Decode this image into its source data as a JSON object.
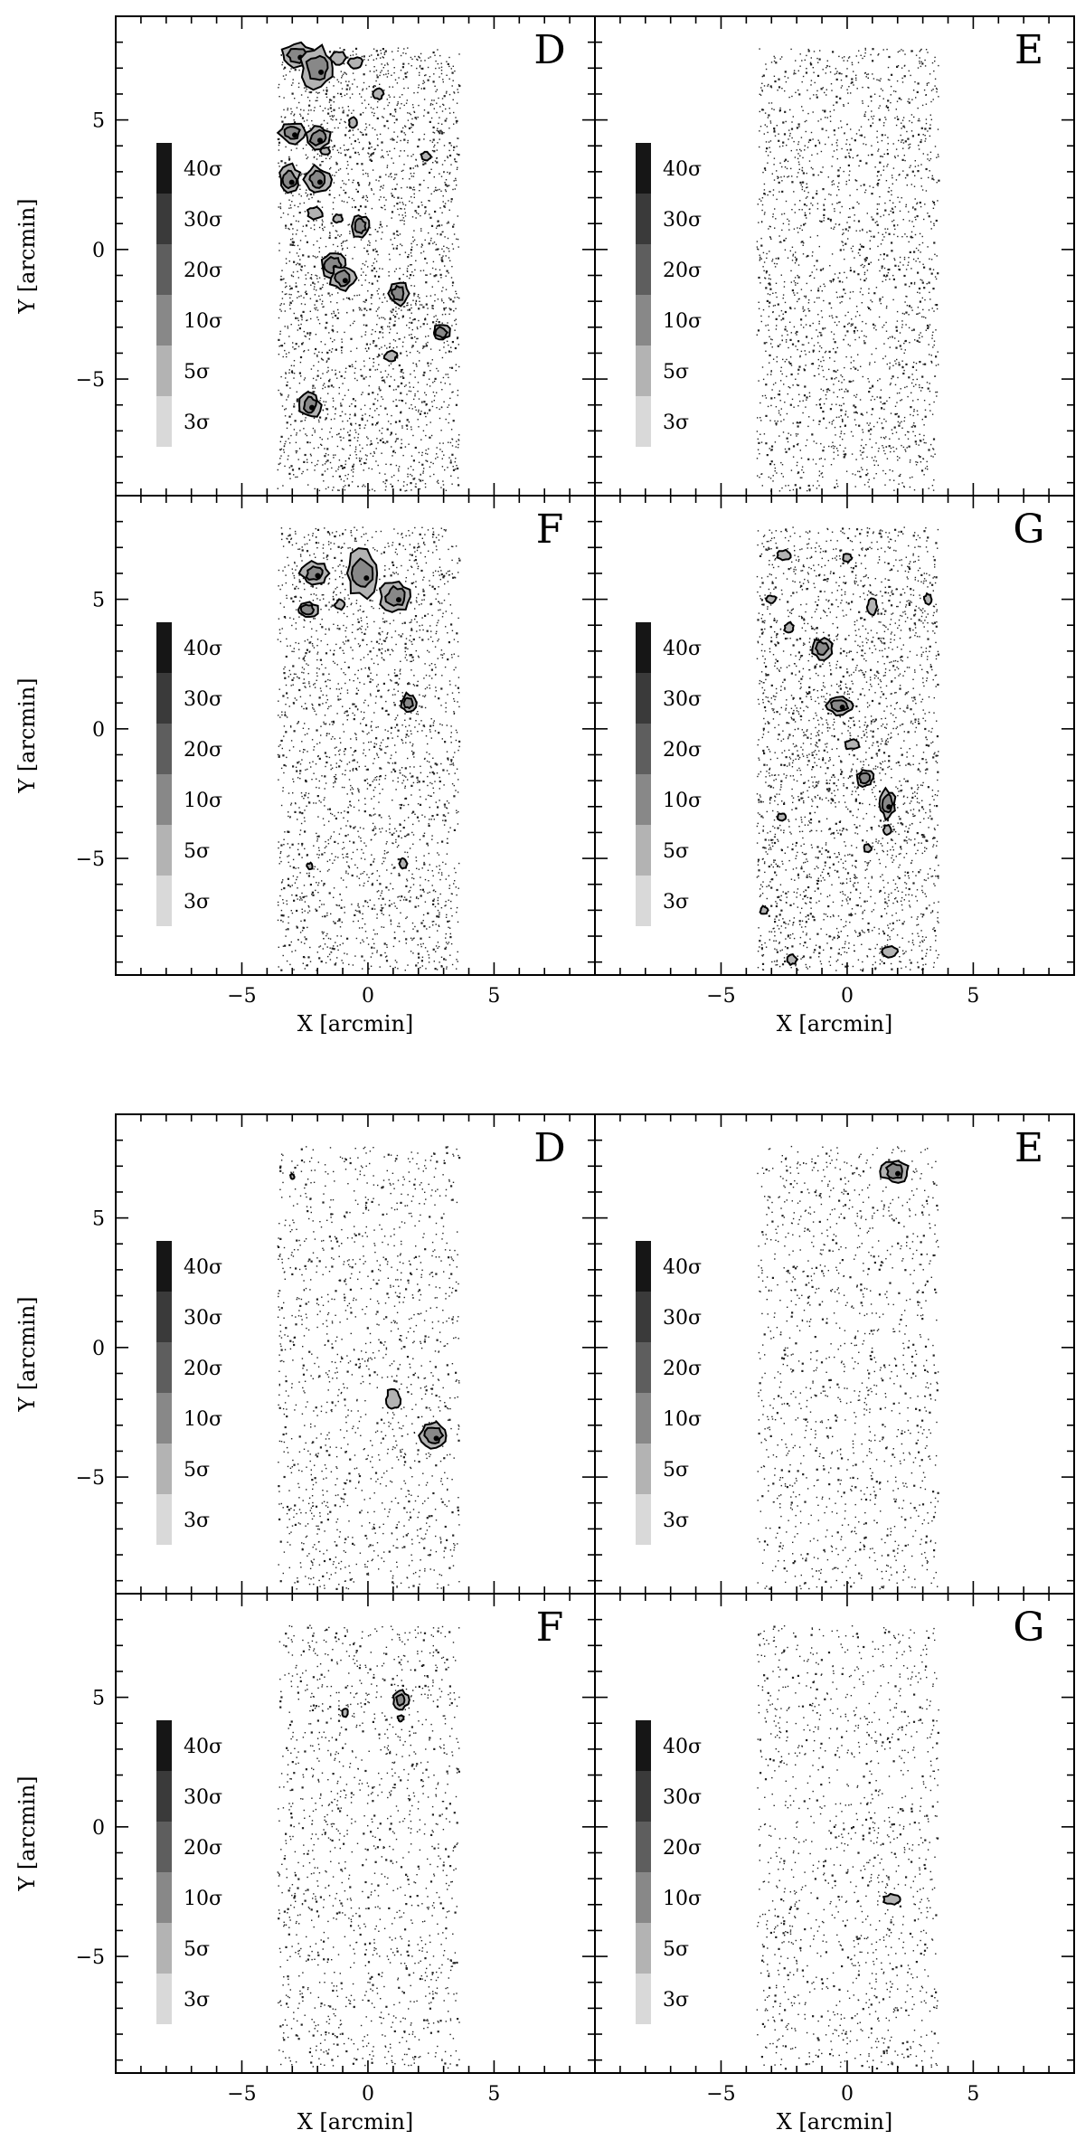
{
  "chart_data": {
    "type": "scatter",
    "description_units": "arcmin",
    "xlabel": "X [arcmin]",
    "ylabel": "Y [arcmin]",
    "xlim": [
      -10,
      9
    ],
    "ylim": [
      -9.5,
      9
    ],
    "xticks": [
      -5,
      0,
      5
    ],
    "yticks": [
      -5,
      0,
      5
    ],
    "field_extent": {
      "x": [
        -3.6,
        3.6
      ],
      "y": [
        -9.3,
        7.8
      ]
    },
    "legend_levels": [
      {
        "label": "40σ",
        "color": "#161616"
      },
      {
        "label": "30σ",
        "color": "#3a3a3a"
      },
      {
        "label": "20σ",
        "color": "#5e5e5e"
      },
      {
        "label": "10σ",
        "color": "#888888"
      },
      {
        "label": "5σ",
        "color": "#b3b3b3"
      },
      {
        "label": "3σ",
        "color": "#d9d9d9"
      }
    ],
    "figures": [
      {
        "panels": [
          {
            "label": "D",
            "density": 1.0,
            "clumps": [
              {
                "x": -2.8,
                "y": 7.5,
                "rx": 0.6,
                "ry": 0.45,
                "level": 10
              },
              {
                "x": -2.0,
                "y": 7.0,
                "rx": 0.7,
                "ry": 0.8,
                "level": 10
              },
              {
                "x": -1.2,
                "y": 7.4,
                "rx": 0.3,
                "ry": 0.25,
                "level": 5
              },
              {
                "x": -0.5,
                "y": 7.2,
                "rx": 0.3,
                "ry": 0.2,
                "level": 5
              },
              {
                "x": 0.4,
                "y": 6.0,
                "rx": 0.2,
                "ry": 0.2,
                "level": 5
              },
              {
                "x": -3.0,
                "y": 4.5,
                "rx": 0.5,
                "ry": 0.4,
                "level": 10
              },
              {
                "x": -2.0,
                "y": 4.3,
                "rx": 0.5,
                "ry": 0.45,
                "level": 10
              },
              {
                "x": -3.1,
                "y": 2.7,
                "rx": 0.4,
                "ry": 0.55,
                "level": 10
              },
              {
                "x": -2.0,
                "y": 2.7,
                "rx": 0.5,
                "ry": 0.5,
                "level": 10
              },
              {
                "x": -1.7,
                "y": 3.8,
                "rx": 0.2,
                "ry": 0.15,
                "level": 5
              },
              {
                "x": -2.1,
                "y": 1.4,
                "rx": 0.3,
                "ry": 0.25,
                "level": 5
              },
              {
                "x": -1.2,
                "y": 1.2,
                "rx": 0.2,
                "ry": 0.15,
                "level": 5
              },
              {
                "x": -0.3,
                "y": 0.9,
                "rx": 0.35,
                "ry": 0.45,
                "level": 10
              },
              {
                "x": -1.4,
                "y": -0.6,
                "rx": 0.5,
                "ry": 0.5,
                "level": 10
              },
              {
                "x": -1.0,
                "y": -1.1,
                "rx": 0.5,
                "ry": 0.5,
                "level": 10
              },
              {
                "x": 1.2,
                "y": -1.7,
                "rx": 0.4,
                "ry": 0.45,
                "level": 10
              },
              {
                "x": 2.9,
                "y": -3.2,
                "rx": 0.35,
                "ry": 0.3,
                "level": 10
              },
              {
                "x": 0.9,
                "y": -4.1,
                "rx": 0.25,
                "ry": 0.2,
                "level": 5
              },
              {
                "x": -2.3,
                "y": -6.0,
                "rx": 0.4,
                "ry": 0.5,
                "level": 10
              },
              {
                "x": 2.3,
                "y": 3.6,
                "rx": 0.2,
                "ry": 0.15,
                "level": 5
              },
              {
                "x": -0.6,
                "y": 4.9,
                "rx": 0.15,
                "ry": 0.2,
                "level": 5
              }
            ]
          },
          {
            "label": "E",
            "density": 0.8,
            "clumps": []
          },
          {
            "label": "F",
            "density": 0.85,
            "clumps": [
              {
                "x": -2.1,
                "y": 6.0,
                "rx": 0.55,
                "ry": 0.45,
                "level": 10
              },
              {
                "x": -0.2,
                "y": 6.0,
                "rx": 0.7,
                "ry": 0.9,
                "level": 10
              },
              {
                "x": 1.1,
                "y": 5.1,
                "rx": 0.6,
                "ry": 0.6,
                "level": 10
              },
              {
                "x": -2.4,
                "y": 4.6,
                "rx": 0.4,
                "ry": 0.3,
                "level": 10
              },
              {
                "x": -1.1,
                "y": 4.8,
                "rx": 0.2,
                "ry": 0.2,
                "level": 5
              },
              {
                "x": 1.6,
                "y": 1.0,
                "rx": 0.3,
                "ry": 0.35,
                "level": 10
              },
              {
                "x": 1.4,
                "y": -5.2,
                "rx": 0.15,
                "ry": 0.2,
                "level": 5
              },
              {
                "x": -2.3,
                "y": -5.3,
                "rx": 0.12,
                "ry": 0.12,
                "level": 5
              }
            ]
          },
          {
            "label": "G",
            "density": 1.0,
            "clumps": [
              {
                "x": -2.5,
                "y": 6.7,
                "rx": 0.3,
                "ry": 0.2,
                "level": 5
              },
              {
                "x": 0.0,
                "y": 6.6,
                "rx": 0.2,
                "ry": 0.15,
                "level": 5
              },
              {
                "x": -3.0,
                "y": 5.0,
                "rx": 0.2,
                "ry": 0.15,
                "level": 5
              },
              {
                "x": 1.0,
                "y": 4.7,
                "rx": 0.2,
                "ry": 0.3,
                "level": 5
              },
              {
                "x": 3.2,
                "y": 5.0,
                "rx": 0.15,
                "ry": 0.2,
                "level": 5
              },
              {
                "x": -2.3,
                "y": 3.9,
                "rx": 0.2,
                "ry": 0.2,
                "level": 5
              },
              {
                "x": -1.0,
                "y": 3.1,
                "rx": 0.4,
                "ry": 0.4,
                "level": 10
              },
              {
                "x": -0.3,
                "y": 0.9,
                "rx": 0.55,
                "ry": 0.35,
                "level": 10
              },
              {
                "x": 0.2,
                "y": -0.6,
                "rx": 0.3,
                "ry": 0.2,
                "level": 5
              },
              {
                "x": 0.7,
                "y": -1.9,
                "rx": 0.35,
                "ry": 0.3,
                "level": 10
              },
              {
                "x": 1.6,
                "y": -2.9,
                "rx": 0.3,
                "ry": 0.55,
                "level": 10
              },
              {
                "x": 1.6,
                "y": -3.9,
                "rx": 0.15,
                "ry": 0.2,
                "level": 5
              },
              {
                "x": -2.6,
                "y": -3.4,
                "rx": 0.15,
                "ry": 0.15,
                "level": 5
              },
              {
                "x": 0.8,
                "y": -4.6,
                "rx": 0.15,
                "ry": 0.15,
                "level": 5
              },
              {
                "x": -3.3,
                "y": -7.0,
                "rx": 0.15,
                "ry": 0.15,
                "level": 5
              },
              {
                "x": 1.7,
                "y": -8.6,
                "rx": 0.3,
                "ry": 0.2,
                "level": 5
              },
              {
                "x": -2.2,
                "y": -8.9,
                "rx": 0.2,
                "ry": 0.2,
                "level": 5
              }
            ]
          }
        ]
      },
      {
        "panels": [
          {
            "label": "D",
            "density": 0.55,
            "clumps": [
              {
                "x": 1.0,
                "y": -2.0,
                "rx": 0.3,
                "ry": 0.4,
                "level": 5
              },
              {
                "x": 2.6,
                "y": -3.4,
                "rx": 0.55,
                "ry": 0.55,
                "level": 10
              },
              {
                "x": -3.0,
                "y": 6.6,
                "rx": 0.08,
                "ry": 0.1,
                "level": 5
              }
            ]
          },
          {
            "label": "E",
            "density": 0.5,
            "clumps": [
              {
                "x": 1.9,
                "y": 6.8,
                "rx": 0.55,
                "ry": 0.45,
                "level": 10
              }
            ]
          },
          {
            "label": "F",
            "density": 0.55,
            "clumps": [
              {
                "x": 1.3,
                "y": 4.9,
                "rx": 0.3,
                "ry": 0.35,
                "level": 10
              },
              {
                "x": -0.9,
                "y": 4.4,
                "rx": 0.12,
                "ry": 0.15,
                "level": 5
              },
              {
                "x": 1.3,
                "y": 4.2,
                "rx": 0.12,
                "ry": 0.12,
                "level": 5
              }
            ]
          },
          {
            "label": "G",
            "density": 0.5,
            "clumps": [
              {
                "x": 1.8,
                "y": -2.8,
                "rx": 0.35,
                "ry": 0.2,
                "level": 5
              }
            ]
          }
        ]
      }
    ]
  }
}
